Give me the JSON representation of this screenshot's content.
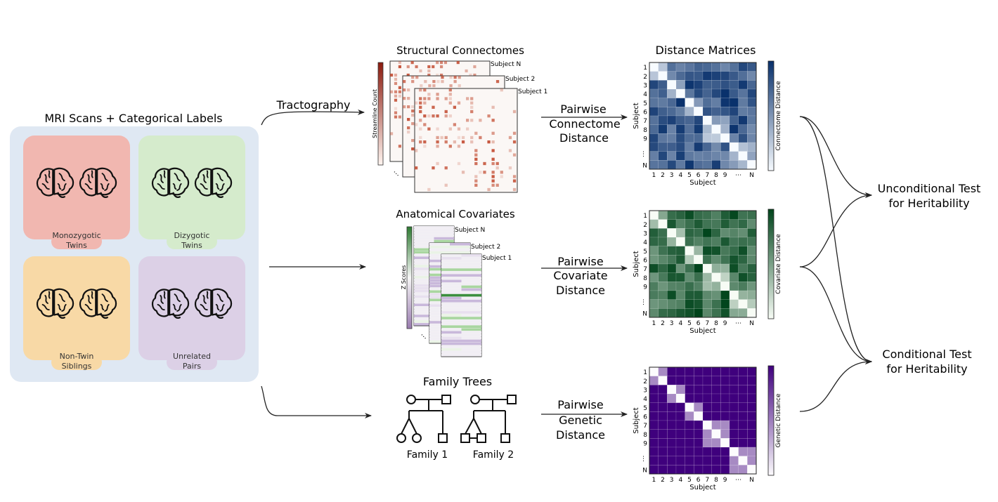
{
  "left_panel": {
    "title": "MRI Scans + Categorical Labels",
    "groups": [
      {
        "label_line1": "Monozygotic",
        "label_line2": "Twins",
        "color": "#f1b7b0"
      },
      {
        "label_line1": "Dizygotic",
        "label_line2": "Twins",
        "color": "#d5ebcc"
      },
      {
        "label_line1": "Non-Twin",
        "label_line2": "Siblings",
        "color": "#f8d9a6"
      },
      {
        "label_line1": "Unrelated",
        "label_line2": "Pairs",
        "color": "#dcd0e6"
      }
    ],
    "panel_color": "#dfe8f3",
    "icon": "brain-icon"
  },
  "tractography_label": "Tractography",
  "connectomes": {
    "title": "Structural Connectomes",
    "subjects": [
      "Subject N",
      "Subject 2",
      "Subject 1"
    ],
    "colorbar_label": "Streamline Count",
    "color": "#c0452a"
  },
  "covariates": {
    "title": "Anatomical Covariates",
    "subjects": [
      "Subject N",
      "Subject 2",
      "Subject 1"
    ],
    "colorbar_label": "Z Scores"
  },
  "family": {
    "title": "Family Trees",
    "family1": "Family 1",
    "family2": "Family 2"
  },
  "pairwise": [
    {
      "l1": "Pairwise",
      "l2": "Connectome",
      "l3": "Distance"
    },
    {
      "l1": "Pairwise",
      "l2": "Covariate",
      "l3": "Distance"
    },
    {
      "l1": "Pairwise",
      "l2": "Genetic",
      "l3": "Distance"
    }
  ],
  "matrices": {
    "title": "Distance Matrices",
    "ticks": [
      "1",
      "2",
      "3",
      "4",
      "5",
      "6",
      "7",
      "8",
      "9",
      "⋯",
      "N"
    ],
    "axis_label": "Subject",
    "items": [
      {
        "colorbar_label": "Connectome Distance",
        "dark": "#08306b",
        "light": "#f7fbff"
      },
      {
        "colorbar_label": "Covariate Distance",
        "dark": "#00441b",
        "light": "#f7fcf5"
      },
      {
        "colorbar_label": "Genetic Distance",
        "dark": "#3f007d",
        "light": "#fcfbfd"
      }
    ]
  },
  "tests": {
    "unconditional_l1": "Unconditional Test",
    "unconditional_l2": "for Heritability",
    "conditional_l1": "Conditional Test",
    "conditional_l2": "for Heritability"
  }
}
